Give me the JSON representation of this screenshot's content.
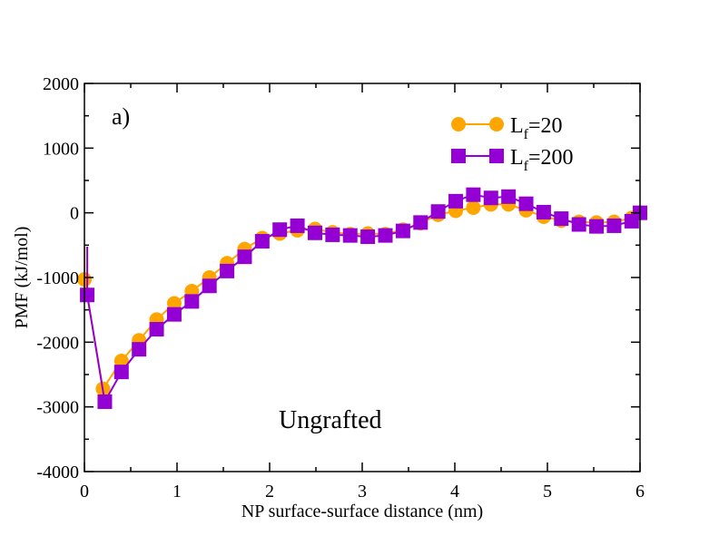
{
  "chart_data": {
    "type": "line",
    "panel_label": "a)",
    "annotation": "Ungrafted",
    "xlabel": "NP surface-surface distance (nm)",
    "ylabel": "PMF (kJ/mol)",
    "xlim": [
      0,
      6
    ],
    "ylim": [
      -4000,
      2000
    ],
    "xticks": [
      0,
      1,
      2,
      3,
      4,
      5,
      6
    ],
    "yticks": [
      -4000,
      -3000,
      -2000,
      -1000,
      0,
      1000,
      2000
    ],
    "xtick_labels": [
      "0",
      "1",
      "2",
      "3",
      "4",
      "5",
      "6"
    ],
    "ytick_labels": [
      "-4000",
      "-3000",
      "-2000",
      "-1000",
      "0",
      "1000",
      "2000"
    ],
    "legend_position": "top-right",
    "series": [
      {
        "name": "Lf=20",
        "legend_main": "L",
        "legend_sub": "f",
        "legend_rest": "=20",
        "color": "#FFA500",
        "marker": "circle",
        "x": [
          0.0,
          0.2,
          0.4,
          0.59,
          0.78,
          0.97,
          1.16,
          1.35,
          1.54,
          1.73,
          1.92,
          2.11,
          2.3,
          2.49,
          2.68,
          2.87,
          3.06,
          3.25,
          3.44,
          3.63,
          3.82,
          4.01,
          4.2,
          4.39,
          4.58,
          4.77,
          4.96,
          5.15,
          5.34,
          5.53,
          5.72,
          5.91,
          6.0
        ],
        "y": [
          -1030,
          -2720,
          -2290,
          -1970,
          -1650,
          -1400,
          -1210,
          -1000,
          -780,
          -560,
          -390,
          -320,
          -270,
          -250,
          -300,
          -330,
          -320,
          -330,
          -260,
          -160,
          -30,
          30,
          80,
          130,
          130,
          40,
          -60,
          -120,
          -140,
          -150,
          -140,
          -80,
          0
        ]
      },
      {
        "name": "Lf=200",
        "legend_main": "L",
        "legend_sub": "f",
        "legend_rest": "=200",
        "color": "#9400D3",
        "marker": "square",
        "x": [
          0.03,
          0.22,
          0.4,
          0.59,
          0.78,
          0.97,
          1.16,
          1.35,
          1.54,
          1.73,
          1.92,
          2.11,
          2.3,
          2.49,
          2.68,
          2.87,
          3.06,
          3.25,
          3.44,
          3.63,
          3.82,
          4.01,
          4.2,
          4.39,
          4.58,
          4.77,
          4.96,
          5.15,
          5.34,
          5.53,
          5.72,
          5.91,
          6.0
        ],
        "y": [
          -1270,
          -2920,
          -2460,
          -2110,
          -1800,
          -1570,
          -1370,
          -1130,
          -900,
          -680,
          -440,
          -260,
          -200,
          -310,
          -340,
          -350,
          -370,
          -350,
          -280,
          -150,
          20,
          180,
          280,
          230,
          250,
          140,
          10,
          -90,
          -180,
          -210,
          -200,
          -130,
          0
        ]
      }
    ]
  }
}
